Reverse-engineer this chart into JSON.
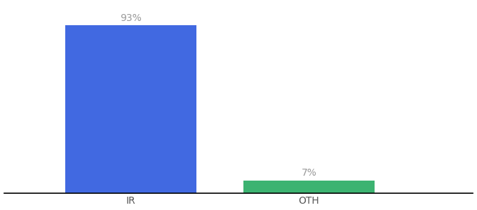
{
  "categories": [
    "IR",
    "OTH"
  ],
  "values": [
    93,
    7
  ],
  "bar_colors": [
    "#4169E1",
    "#3CB371"
  ],
  "labels": [
    "93%",
    "7%"
  ],
  "label_color": "#999999",
  "background_color": "#ffffff",
  "bar_width": 0.28,
  "xlim": [
    0.0,
    1.0
  ],
  "ylim": [
    0,
    105
  ],
  "label_fontsize": 10,
  "tick_fontsize": 10,
  "tick_color": "#555555",
  "spine_color": "#000000"
}
